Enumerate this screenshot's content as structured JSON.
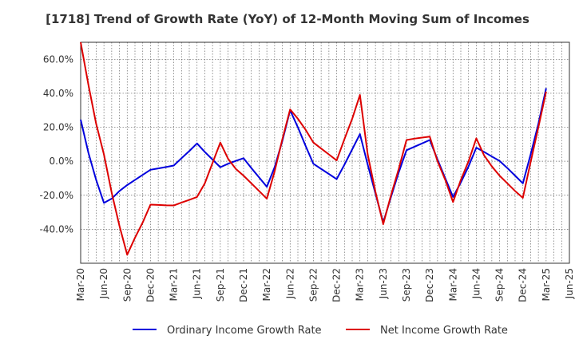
{
  "chart_data": {
    "type": "line",
    "title": "[1718]  Trend of Growth Rate (YoY) of 12-Month Moving Sum of Incomes",
    "xlabel": "",
    "ylabel": "",
    "ylim": [
      -60,
      70
    ],
    "yticks": [
      -40,
      -20,
      0,
      20,
      40,
      60
    ],
    "ytick_labels": [
      "-40.0%",
      "-20.0%",
      "0.0%",
      "20.0%",
      "40.0%",
      "60.0%"
    ],
    "xlim": [
      "Mar-20",
      "Jun-25"
    ],
    "xtick_labels": [
      "Mar-20",
      "Jun-20",
      "Sep-20",
      "Dec-20",
      "Mar-21",
      "Jun-21",
      "Sep-21",
      "Dec-21",
      "Mar-22",
      "Jun-22",
      "Sep-22",
      "Dec-22",
      "Mar-23",
      "Jun-23",
      "Sep-23",
      "Dec-23",
      "Mar-24",
      "Jun-24",
      "Sep-24",
      "Dec-24",
      "Mar-25",
      "Jun-25"
    ],
    "grid": true,
    "legend_position": "bottom",
    "x": [
      "Mar-20",
      "Apr-20",
      "May-20",
      "Jun-20",
      "Jul-20",
      "Aug-20",
      "Sep-20",
      "Oct-20",
      "Nov-20",
      "Dec-20",
      "Jan-21",
      "Feb-21",
      "Mar-21",
      "Apr-21",
      "May-21",
      "Jun-21",
      "Jul-21",
      "Aug-21",
      "Sep-21",
      "Oct-21",
      "Nov-21",
      "Dec-21",
      "Jan-22",
      "Feb-22",
      "Mar-22",
      "Apr-22",
      "May-22",
      "Jun-22",
      "Jul-22",
      "Aug-22",
      "Sep-22",
      "Oct-22",
      "Nov-22",
      "Dec-22",
      "Jan-23",
      "Feb-23",
      "Mar-23",
      "Apr-23",
      "May-23",
      "Jun-23",
      "Jul-23",
      "Aug-23",
      "Sep-23",
      "Oct-23",
      "Nov-23",
      "Dec-23",
      "Jan-24",
      "Feb-24",
      "Mar-24",
      "Apr-24",
      "May-24",
      "Jun-24",
      "Jul-24",
      "Aug-24",
      "Sep-24",
      "Oct-24",
      "Nov-24",
      "Dec-24",
      "Jan-25",
      "Feb-25",
      "Mar-25"
    ],
    "series": [
      {
        "name": "Ordinary Income Growth Rate",
        "color": "#0000dd",
        "values": [
          24.5,
          5.0,
          -11.0,
          -24.5,
          -22.0,
          -17.5,
          -14.0,
          -11.0,
          -8.0,
          -5.0,
          -4.2,
          -3.4,
          -2.5,
          1.8,
          6.0,
          10.5,
          5.5,
          1.0,
          -3.5,
          -1.5,
          0.2,
          1.8,
          -4.0,
          -9.5,
          -15.0,
          -3.5,
          12.0,
          30.0,
          20.0,
          9.0,
          -1.5,
          -4.5,
          -7.5,
          -10.5,
          -2.0,
          7.0,
          16.0,
          -2.0,
          -19.0,
          -36.0,
          -21.0,
          -6.5,
          6.5,
          8.5,
          10.5,
          12.5,
          1.0,
          -10.0,
          -21.0,
          -12.5,
          -3.0,
          8.0,
          5.5,
          2.8,
          0.2,
          -4.0,
          -8.5,
          -13.0,
          4.0,
          22.0,
          43.0
        ]
      },
      {
        "name": "Net Income Growth Rate",
        "color": "#dd0000",
        "values": [
          70.0,
          45.0,
          22.0,
          4.0,
          -18.5,
          -38.0,
          -55.0,
          -45.0,
          -36.0,
          -25.5,
          -25.7,
          -25.9,
          -26.0,
          -24.3,
          -22.7,
          -21.0,
          -13.0,
          -1.0,
          11.0,
          1.5,
          -4.5,
          -8.5,
          -13.0,
          -17.5,
          -22.0,
          -6.0,
          13.0,
          30.5,
          25.0,
          18.5,
          11.0,
          7.5,
          4.0,
          0.5,
          13.0,
          25.0,
          39.0,
          4.0,
          -18.0,
          -37.0,
          -20.0,
          -4.5,
          12.5,
          13.3,
          13.9,
          14.5,
          0.0,
          -11.0,
          -24.0,
          -11.0,
          0.0,
          13.5,
          3.5,
          -3.0,
          -8.5,
          -13.0,
          -17.5,
          -21.5,
          -0.5,
          20.0,
          41.0
        ]
      }
    ]
  }
}
